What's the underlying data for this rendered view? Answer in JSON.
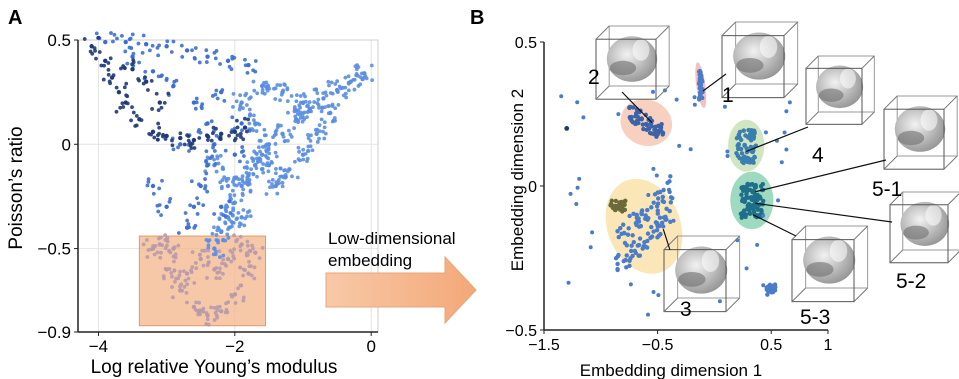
{
  "chart_data": [
    {
      "panel_label": "A",
      "type": "scatter",
      "xlabel": "Log relative Young’s modulus",
      "ylabel": "Poisson’s ratio",
      "xlim": [
        -4.3,
        0.1
      ],
      "ylim": [
        -0.9,
        0.5
      ],
      "xticks": [
        -4,
        -2,
        0
      ],
      "yticks": [
        0.5,
        0,
        -0.5,
        -0.9
      ],
      "xtick_labels": [
        "−4",
        "−2",
        "0"
      ],
      "ytick_labels": [
        "0.5",
        "0",
        "−0.5",
        "−0.9"
      ],
      "grid": true,
      "highlight_region": {
        "x": [
          -3.4,
          -1.55
        ],
        "y": [
          -0.87,
          -0.44
        ],
        "color": "#f4b183"
      },
      "colors": {
        "light": "#5b8ee0",
        "mid": "#3d6fd0",
        "dark": "#1f3a78"
      },
      "series": [
        {
          "color": "light",
          "points": [
            [
              -0.1,
              0.34
            ],
            [
              -0.3,
              0.3
            ],
            [
              -0.5,
              0.26
            ],
            [
              -0.7,
              0.22
            ],
            [
              -0.9,
              0.17
            ],
            [
              -1.1,
              0.12
            ],
            [
              -1.3,
              0.05
            ],
            [
              -1.5,
              0.0
            ],
            [
              -1.6,
              -0.05
            ],
            [
              -1.7,
              -0.1
            ],
            [
              -1.8,
              -0.15
            ],
            [
              -1.9,
              -0.2
            ],
            [
              -2.0,
              -0.28
            ],
            [
              -2.1,
              -0.35
            ],
            [
              -2.2,
              -0.42
            ],
            [
              -2.3,
              -0.5
            ],
            [
              -0.8,
              0.05
            ],
            [
              -1.0,
              -0.05
            ],
            [
              -1.2,
              -0.12
            ],
            [
              -1.4,
              -0.2
            ],
            [
              -0.6,
              0.15
            ],
            [
              -1.0,
              0.2
            ],
            [
              -1.3,
              0.25
            ],
            [
              -1.6,
              0.28
            ],
            [
              -1.9,
              0.2
            ],
            [
              -1.7,
              0.1
            ],
            [
              -1.5,
              -0.1
            ],
            [
              -1.9,
              -0.35
            ],
            [
              -2.1,
              -0.2
            ],
            [
              -2.3,
              -0.1
            ]
          ]
        },
        {
          "color": "mid",
          "points": [
            [
              -3.9,
              0.49
            ],
            [
              -3.6,
              0.49
            ],
            [
              -3.3,
              0.48
            ],
            [
              -3.0,
              0.47
            ],
            [
              -2.7,
              0.45
            ],
            [
              -2.4,
              0.42
            ],
            [
              -2.1,
              0.4
            ],
            [
              -1.8,
              0.38
            ],
            [
              -3.5,
              0.42
            ],
            [
              -3.2,
              0.35
            ],
            [
              -2.9,
              0.28
            ],
            [
              -2.6,
              0.2
            ],
            [
              -2.4,
              0.1
            ],
            [
              -2.3,
              0.0
            ],
            [
              -2.4,
              -0.1
            ],
            [
              -2.5,
              -0.2
            ],
            [
              -2.6,
              -0.3
            ],
            [
              -2.7,
              -0.4
            ],
            [
              -3.0,
              -0.3
            ],
            [
              -3.2,
              -0.2
            ],
            [
              -2.8,
              0.0
            ],
            [
              -2.2,
              0.25
            ],
            [
              -1.9,
              0.1
            ],
            [
              -2.0,
              -0.05
            ],
            [
              -2.2,
              -0.3
            ]
          ]
        },
        {
          "color": "dark",
          "points": [
            [
              -4.1,
              0.47
            ],
            [
              -3.9,
              0.4
            ],
            [
              -3.8,
              0.32
            ],
            [
              -3.7,
              0.25
            ],
            [
              -3.6,
              0.2
            ],
            [
              -3.4,
              0.12
            ],
            [
              -3.2,
              0.06
            ],
            [
              -3.0,
              0.04
            ],
            [
              -2.8,
              0.03
            ],
            [
              -2.6,
              0.02
            ],
            [
              -2.4,
              0.04
            ],
            [
              -2.2,
              0.05
            ],
            [
              -2.0,
              0.06
            ],
            [
              -1.85,
              0.08
            ],
            [
              -3.5,
              0.36
            ],
            [
              -3.3,
              0.3
            ],
            [
              -3.1,
              0.2
            ]
          ]
        },
        {
          "color": "pink",
          "points": [
            [
              -3.2,
              -0.5
            ],
            [
              -3.0,
              -0.6
            ],
            [
              -2.8,
              -0.7
            ],
            [
              -2.6,
              -0.78
            ],
            [
              -2.4,
              -0.82
            ],
            [
              -2.2,
              -0.8
            ],
            [
              -2.0,
              -0.72
            ],
            [
              -1.8,
              -0.62
            ],
            [
              -1.7,
              -0.52
            ],
            [
              -2.5,
              -0.55
            ],
            [
              -2.3,
              -0.6
            ],
            [
              -2.7,
              -0.62
            ],
            [
              -3.1,
              -0.48
            ],
            [
              -2.9,
              -0.5
            ],
            [
              -2.1,
              -0.55
            ],
            [
              -1.9,
              -0.48
            ]
          ]
        }
      ]
    },
    {
      "panel_label": "B",
      "type": "scatter",
      "xlabel": "Embedding dimension 1",
      "ylabel": "Embedding dimension 2",
      "xlim": [
        -1.5,
        1.0
      ],
      "ylim": [
        -0.5,
        0.5
      ],
      "xticks": [
        -1.5,
        -0.5,
        0.5,
        1
      ],
      "yticks": [
        0.5,
        0,
        -0.5
      ],
      "xtick_labels": [
        "−1.5",
        "−0.5",
        "0.5",
        "1"
      ],
      "ytick_labels": [
        "0.5",
        "0",
        "−0.5"
      ],
      "cluster_labels": [
        "1",
        "2",
        "3",
        "4",
        "5-1",
        "5-2",
        "5-3"
      ],
      "clusters": [
        {
          "label": "1",
          "fill": "#f08a8a",
          "center": [
            -0.12,
            0.35
          ],
          "radii": [
            0.04,
            0.08
          ]
        },
        {
          "label": "2",
          "fill": "#f2a98a",
          "center": [
            -0.6,
            0.22
          ],
          "radii": [
            0.23,
            0.08
          ]
        },
        {
          "label": "3",
          "fill": "#f5d27a",
          "center": [
            -0.62,
            -0.14
          ],
          "radii": [
            0.32,
            0.17
          ]
        },
        {
          "label": "4",
          "fill": "#a9d18e",
          "center": [
            0.28,
            0.14
          ],
          "radii": [
            0.16,
            0.09
          ]
        },
        {
          "label": "5-1",
          "fill": "#4dbb8a",
          "center": [
            0.33,
            -0.05
          ],
          "radii": [
            0.19,
            0.1
          ]
        }
      ],
      "colors": {
        "point": "#4a7cc9",
        "dark": "#1e3a6e",
        "olive": "#6b6b3a",
        "teal": "#1f6f8b"
      }
    }
  ],
  "arrow_text": [
    "Low-dimensional",
    "embedding"
  ]
}
